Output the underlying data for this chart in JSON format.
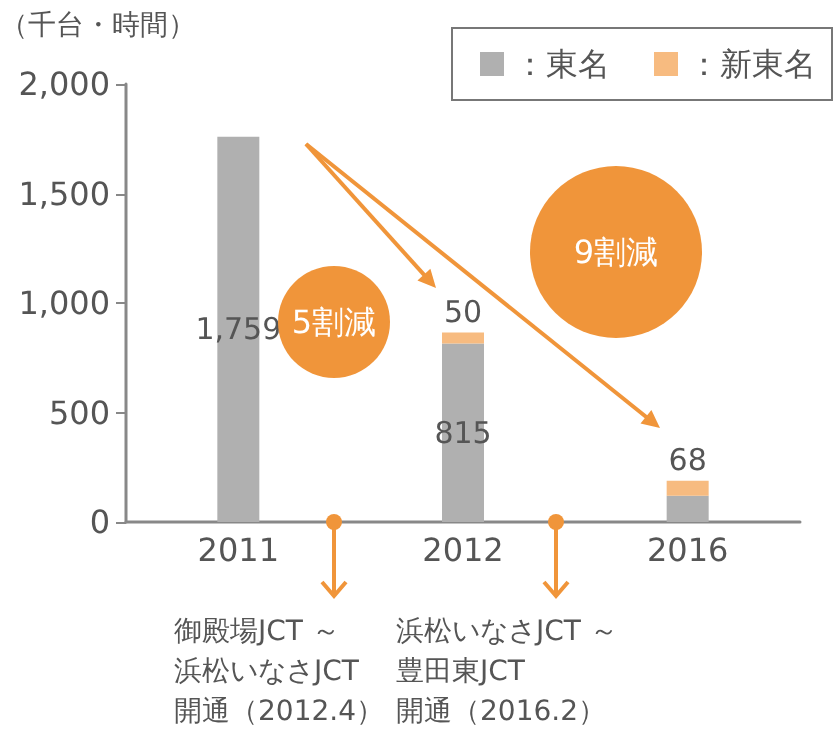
{
  "chart_data": {
    "type": "bar",
    "ylabel": "（千台・時間）",
    "categories": [
      "2011",
      "2012",
      "2016"
    ],
    "stacked": true,
    "series": [
      {
        "name": "：東名",
        "color": "#b0b0b0",
        "values": [
          1759,
          815,
          120
        ],
        "value_labels": [
          "1,759",
          "815",
          null
        ]
      },
      {
        "name": "：新東名",
        "color": "#f7bb80",
        "values": [
          null,
          50,
          68
        ],
        "value_labels": [
          null,
          "50",
          "68"
        ]
      }
    ],
    "ylim": [
      0,
      2000
    ],
    "yticks": [
      {
        "value": 0,
        "label": "0"
      },
      {
        "value": 500,
        "label": "500"
      },
      {
        "value": 1000,
        "label": "1,000"
      },
      {
        "value": 1500,
        "label": "1,500"
      },
      {
        "value": 2000,
        "label": "2,000"
      }
    ],
    "grid": false,
    "legend": "top right",
    "annotations": [
      "5割減",
      "9割減",
      "御殿場JCT ～",
      "浜松いなさJCT",
      "開通（2012.4）",
      "浜松いなさJCT ～",
      "豊田東JCT",
      "開通（2016.2）"
    ]
  }
}
